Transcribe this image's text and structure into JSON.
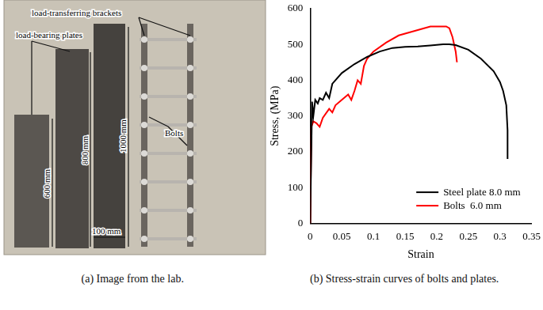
{
  "chart_data": {
    "type": "line",
    "x_label": "Strain",
    "y_label": "Stress, (MPa)",
    "xlim": [
      0,
      0.35
    ],
    "xticks": [
      0,
      0.05,
      0.1,
      0.15,
      0.2,
      0.25,
      0.3,
      0.35
    ],
    "ylim": [
      0,
      600
    ],
    "yticks": [
      0,
      100,
      200,
      300,
      400,
      500,
      600
    ],
    "grid": false,
    "legend": "lower right",
    "series": [
      {
        "name": "Steel plate 8.0 mm",
        "color": "#000000",
        "x": [
          0,
          0.003,
          0.005,
          0.008,
          0.012,
          0.015,
          0.02,
          0.025,
          0.03,
          0.035,
          0.04,
          0.05,
          0.07,
          0.09,
          0.11,
          0.13,
          0.15,
          0.17,
          0.19,
          0.21,
          0.22,
          0.23,
          0.25,
          0.27,
          0.29,
          0.3,
          0.305,
          0.31,
          0.312,
          0.312
        ],
        "values": [
          0,
          340,
          300,
          345,
          335,
          350,
          345,
          365,
          350,
          390,
          400,
          420,
          445,
          465,
          480,
          490,
          493,
          494,
          497,
          500,
          500,
          498,
          485,
          460,
          425,
          395,
          370,
          330,
          260,
          180
        ]
      },
      {
        "name": "Bolts  6.0 mm",
        "color": "#ff0000",
        "x": [
          0,
          0.002,
          0.005,
          0.01,
          0.015,
          0.02,
          0.03,
          0.035,
          0.04,
          0.05,
          0.06,
          0.065,
          0.07,
          0.075,
          0.08,
          0.085,
          0.09,
          0.1,
          0.12,
          0.14,
          0.16,
          0.18,
          0.19,
          0.2,
          0.215,
          0.22,
          0.225,
          0.23,
          0.232
        ],
        "values": [
          0,
          270,
          285,
          280,
          270,
          295,
          320,
          310,
          330,
          345,
          360,
          345,
          370,
          400,
          390,
          440,
          460,
          480,
          505,
          525,
          535,
          545,
          550,
          550,
          550,
          545,
          520,
          480,
          450
        ]
      }
    ]
  },
  "image": {
    "annotations": {
      "brackets": "load-transferring brackets",
      "plates": "load-bearing plates",
      "bolts": "Bolts"
    },
    "plate_lengths": [
      "600 mm",
      "800 mm",
      "1000 mm"
    ],
    "plate_width": "100 mm"
  },
  "captions": [
    "(a) Image from the lab.",
    "(b) Stress-strain curves of bolts and plates."
  ]
}
